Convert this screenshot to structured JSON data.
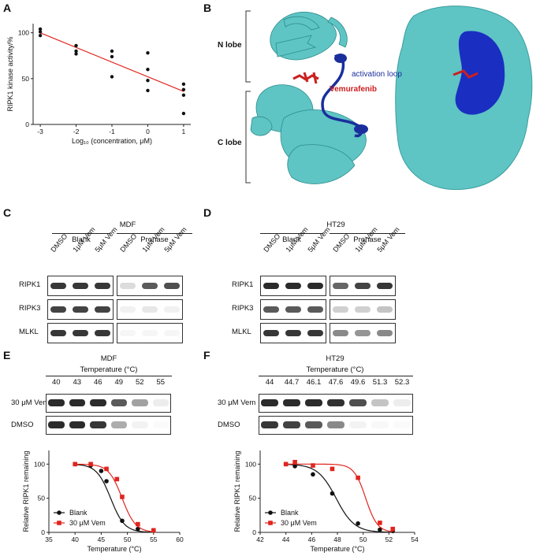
{
  "panels": {
    "A": {
      "letter": "A",
      "chart_data": {
        "type": "scatter",
        "xlabel": "Log₁₀ (concentration, μM)",
        "ylabel": "RIPK1 kinase activity/%",
        "xlim": [
          -3.2,
          1.2
        ],
        "ylim": [
          0,
          110
        ],
        "x_ticks": [
          -3,
          -2,
          -1,
          0,
          1
        ],
        "y_ticks": [
          0,
          50,
          100
        ],
        "points": [
          {
            "x": -3,
            "y": 104
          },
          {
            "x": -3,
            "y": 101
          },
          {
            "x": -3,
            "y": 97
          },
          {
            "x": -2,
            "y": 86
          },
          {
            "x": -2,
            "y": 80
          },
          {
            "x": -2,
            "y": 77
          },
          {
            "x": -1,
            "y": 80
          },
          {
            "x": -1,
            "y": 74
          },
          {
            "x": -1,
            "y": 52
          },
          {
            "x": 0,
            "y": 78
          },
          {
            "x": 0,
            "y": 60
          },
          {
            "x": 0,
            "y": 48
          },
          {
            "x": 0,
            "y": 37
          },
          {
            "x": 1,
            "y": 44
          },
          {
            "x": 1,
            "y": 38
          },
          {
            "x": 1,
            "y": 32
          },
          {
            "x": 1,
            "y": 12
          }
        ],
        "fit_line": {
          "x": [
            -3,
            1
          ],
          "y": [
            100,
            36
          ]
        },
        "point_color": "#111111",
        "line_color": "#e0251f"
      }
    },
    "B": {
      "letter": "B",
      "labels": {
        "n_lobe": "N lobe",
        "c_lobe": "C lobe",
        "activation_loop": "activation loop",
        "drug": "Vemurafenib"
      },
      "colors": {
        "cartoon": "#5fc4c4",
        "loop": "#1a2f9c",
        "drug": "#cc1f1f"
      }
    },
    "C": {
      "letter": "C",
      "cell_line": "MDF",
      "groups": [
        "Blank",
        "Pronase"
      ],
      "lanes": [
        "DMSO",
        "1μM Vem",
        "5μM Vem",
        "DMSO",
        "1μM Vem",
        "5μM Vem"
      ],
      "rows": [
        {
          "label": "RIPK1",
          "intensity": [
            0.85,
            0.85,
            0.85,
            0.15,
            0.7,
            0.75
          ]
        },
        {
          "label": "RIPK3",
          "intensity": [
            0.8,
            0.8,
            0.8,
            0.06,
            0.1,
            0.06
          ]
        },
        {
          "label": "MLKL",
          "intensity": [
            0.85,
            0.85,
            0.85,
            0.04,
            0.04,
            0.04
          ]
        }
      ]
    },
    "D": {
      "letter": "D",
      "cell_line": "HT29",
      "groups": [
        "Blank",
        "Pronase"
      ],
      "lanes": [
        "DMSO",
        "1μM Vem",
        "5μM Vem",
        "DMSO",
        "1μM Vem",
        "5μM Vem"
      ],
      "rows": [
        {
          "label": "RIPK1",
          "intensity": [
            0.9,
            0.9,
            0.9,
            0.65,
            0.8,
            0.85
          ]
        },
        {
          "label": "RIPK3",
          "intensity": [
            0.7,
            0.7,
            0.7,
            0.2,
            0.2,
            0.25
          ]
        },
        {
          "label": "MLKL",
          "intensity": [
            0.85,
            0.85,
            0.85,
            0.5,
            0.45,
            0.5
          ]
        }
      ]
    },
    "E": {
      "letter": "E",
      "cell_line": "MDF",
      "temp_label": "Temperature (°C)",
      "temps": [
        "40",
        "43",
        "46",
        "49",
        "52",
        "55"
      ],
      "blot_rows": [
        {
          "label": "30 μM Vem",
          "intensity": [
            0.9,
            0.9,
            0.9,
            0.7,
            0.4,
            0.08
          ]
        },
        {
          "label": "DMSO",
          "intensity": [
            0.9,
            0.9,
            0.85,
            0.35,
            0.05,
            0.02
          ]
        }
      ],
      "chart_data": {
        "type": "line",
        "xlabel": "Temperature (°C)",
        "ylabel": "Relative RIPK1 remaining",
        "xlim": [
          35,
          60
        ],
        "ylim": [
          0,
          120
        ],
        "x_ticks": [
          35,
          40,
          45,
          50,
          55,
          60
        ],
        "y_ticks": [
          0,
          50,
          100
        ],
        "series": [
          {
            "name": "Blank",
            "color": "#111111",
            "marker": "circle",
            "x": [
              40,
              43,
              45,
              46,
              49,
              52,
              55
            ],
            "y": [
              100,
              98,
              90,
              75,
              17,
              5,
              3
            ],
            "tm": 46.8,
            "slope": 0.75
          },
          {
            "name": "30 μM Vem",
            "color": "#e0251f",
            "marker": "square",
            "x": [
              40,
              43,
              46,
              48,
              49,
              52,
              55
            ],
            "y": [
              100,
              100,
              93,
              78,
              52,
              12,
              3
            ],
            "tm": 49.0,
            "slope": 0.78
          }
        ]
      }
    },
    "F": {
      "letter": "F",
      "cell_line": "HT29",
      "temp_label": "Temperature (°C)",
      "temps": [
        "44",
        "44.7",
        "46.1",
        "47.6",
        "49.6",
        "51.3",
        "52.3"
      ],
      "blot_rows": [
        {
          "label": "30 μM Vem",
          "intensity": [
            0.9,
            0.9,
            0.9,
            0.88,
            0.75,
            0.25,
            0.08
          ]
        },
        {
          "label": "DMSO",
          "intensity": [
            0.85,
            0.8,
            0.7,
            0.5,
            0.05,
            0.03,
            0.02
          ]
        }
      ],
      "chart_data": {
        "type": "line",
        "xlabel": "Temperature (°C)",
        "ylabel": "Relative RIPK1 remaining",
        "xlim": [
          42,
          54
        ],
        "ylim": [
          0,
          120
        ],
        "x_ticks": [
          42,
          44,
          46,
          48,
          50,
          52,
          54
        ],
        "y_ticks": [
          0,
          50,
          100
        ],
        "series": [
          {
            "name": "Blank",
            "color": "#111111",
            "marker": "circle",
            "x": [
              44,
              44.7,
              46.1,
              47.6,
              49.6,
              51.3,
              52.3
            ],
            "y": [
              100,
              97,
              85,
              57,
              13,
              4,
              2
            ],
            "tm": 47.9,
            "slope": 1.4
          },
          {
            "name": "30 μM Vem",
            "color": "#e0251f",
            "marker": "square",
            "x": [
              44,
              44.7,
              46.1,
              47.6,
              49.6,
              51.3,
              52.3
            ],
            "y": [
              100,
              103,
              98,
              93,
              80,
              14,
              5
            ],
            "tm": 50.2,
            "slope": 2.2
          }
        ]
      }
    }
  }
}
